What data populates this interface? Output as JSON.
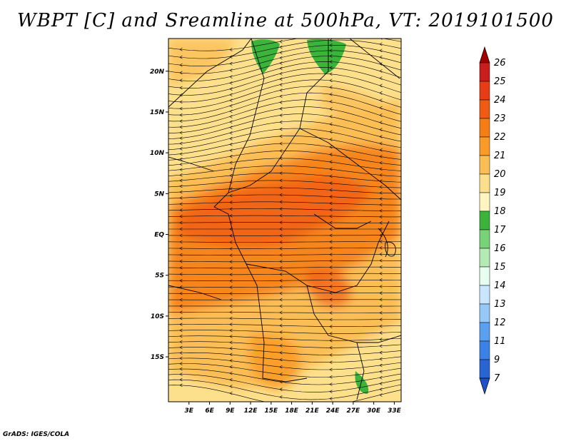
{
  "title": "WBPT [C] and Sreamline at 500hPa, VT: 2019101500",
  "footer": "GrADS: IGES/COLA",
  "map": {
    "lon_range": [
      0,
      34
    ],
    "lat_range": [
      -20.5,
      24
    ],
    "lat_ticks": [
      "20N",
      "15N",
      "10N",
      "5N",
      "EQ",
      "5S",
      "10S",
      "15S"
    ],
    "lat_values": [
      20,
      15,
      10,
      5,
      0,
      -5,
      -10,
      -15
    ],
    "lon_ticks": [
      "3E",
      "6E",
      "9E",
      "12E",
      "15E",
      "18E",
      "21E",
      "24E",
      "27E",
      "30E",
      "33E"
    ],
    "lon_values": [
      3,
      6,
      9,
      12,
      15,
      18,
      21,
      24,
      27,
      30,
      33
    ]
  },
  "colorbar": {
    "labels": [
      "26",
      "25",
      "24",
      "23",
      "22",
      "21",
      "20",
      "19",
      "18",
      "17",
      "16",
      "15",
      "14",
      "13",
      "12",
      "11",
      "9",
      "7"
    ],
    "colors": [
      "#a00000",
      "#c81e1e",
      "#e83c14",
      "#f05a14",
      "#f57d14",
      "#fa9b28",
      "#fbbe55",
      "#fde08c",
      "#fff5c0",
      "#3cb43c",
      "#78d278",
      "#b4ebb4",
      "#e6fff0",
      "#c8e6ff",
      "#96c8fa",
      "#5aa0f0",
      "#3c82e6",
      "#2864d2",
      "#1e50c8"
    ]
  }
}
